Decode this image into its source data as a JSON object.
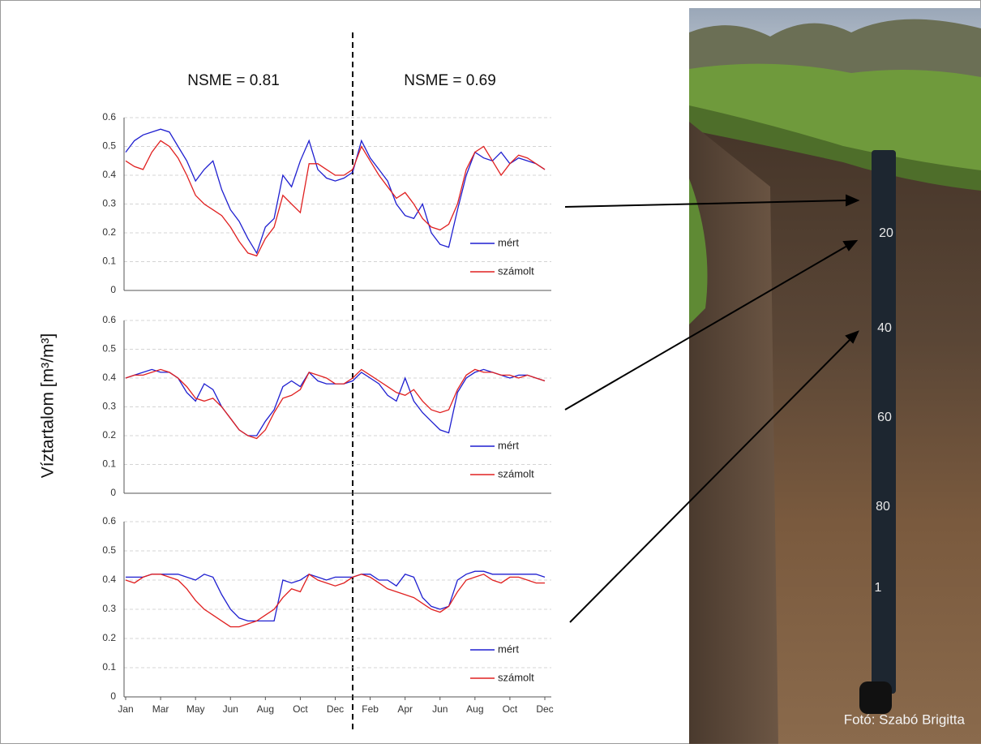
{
  "y_label": "Víztartalom [m³/m³]",
  "annotations": [
    "NSME = 0.81",
    "NSME = 0.69"
  ],
  "photo_credit": "Fotó: Szabó Brigitta",
  "tape_labels": [
    "20",
    "40",
    "60",
    "80",
    "1"
  ],
  "chart_data": [
    {
      "type": "line",
      "ylim": [
        0,
        0.6
      ],
      "yticks": [
        0,
        0.1,
        0.2,
        0.3,
        0.4,
        0.5,
        0.6
      ],
      "grid": true,
      "legend": "lower right",
      "series": [
        {
          "name": "mért",
          "color": "#1f1fd0",
          "values": [
            0.48,
            0.52,
            0.54,
            0.55,
            0.56,
            0.55,
            0.5,
            0.45,
            0.38,
            0.42,
            0.45,
            0.35,
            0.28,
            0.24,
            0.18,
            0.13,
            0.22,
            0.25,
            0.4,
            0.36,
            0.45,
            0.52,
            0.42,
            0.39,
            0.38,
            0.39,
            0.41,
            0.52,
            0.46,
            0.42,
            0.38,
            0.3,
            0.26,
            0.25,
            0.3,
            0.2,
            0.16,
            0.15,
            0.28,
            0.4,
            0.48,
            0.46,
            0.45,
            0.48,
            0.44,
            0.46,
            0.45,
            0.44,
            0.42
          ]
        },
        {
          "name": "számolt",
          "color": "#e02020",
          "values": [
            0.45,
            0.43,
            0.42,
            0.48,
            0.52,
            0.5,
            0.46,
            0.4,
            0.33,
            0.3,
            0.28,
            0.26,
            0.22,
            0.17,
            0.13,
            0.12,
            0.18,
            0.22,
            0.33,
            0.3,
            0.27,
            0.44,
            0.44,
            0.42,
            0.4,
            0.4,
            0.42,
            0.5,
            0.45,
            0.4,
            0.36,
            0.32,
            0.34,
            0.3,
            0.25,
            0.22,
            0.21,
            0.23,
            0.3,
            0.42,
            0.48,
            0.5,
            0.45,
            0.4,
            0.44,
            0.47,
            0.46,
            0.44,
            0.42
          ]
        }
      ]
    },
    {
      "type": "line",
      "ylim": [
        0,
        0.6
      ],
      "yticks": [
        0,
        0.1,
        0.2,
        0.3,
        0.4,
        0.5,
        0.6
      ],
      "grid": true,
      "legend": "lower right",
      "series": [
        {
          "name": "mért",
          "color": "#1f1fd0",
          "values": [
            0.4,
            0.41,
            0.42,
            0.43,
            0.42,
            0.42,
            0.4,
            0.35,
            0.32,
            0.38,
            0.36,
            0.3,
            0.26,
            0.22,
            0.2,
            0.2,
            0.25,
            0.29,
            0.37,
            0.39,
            0.37,
            0.42,
            0.39,
            0.38,
            0.38,
            0.38,
            0.39,
            0.42,
            0.4,
            0.38,
            0.34,
            0.32,
            0.4,
            0.32,
            0.28,
            0.25,
            0.22,
            0.21,
            0.35,
            0.4,
            0.42,
            0.43,
            0.42,
            0.41,
            0.4,
            0.41,
            0.41,
            0.4,
            0.39
          ]
        },
        {
          "name": "számolt",
          "color": "#e02020",
          "values": [
            0.4,
            0.41,
            0.41,
            0.42,
            0.43,
            0.42,
            0.4,
            0.37,
            0.33,
            0.32,
            0.33,
            0.3,
            0.26,
            0.22,
            0.2,
            0.19,
            0.22,
            0.28,
            0.33,
            0.34,
            0.36,
            0.42,
            0.41,
            0.4,
            0.38,
            0.38,
            0.4,
            0.43,
            0.41,
            0.39,
            0.37,
            0.35,
            0.34,
            0.36,
            0.32,
            0.29,
            0.28,
            0.29,
            0.36,
            0.41,
            0.43,
            0.42,
            0.42,
            0.41,
            0.41,
            0.4,
            0.41,
            0.4,
            0.39
          ]
        }
      ]
    },
    {
      "type": "line",
      "ylim": [
        0,
        0.6
      ],
      "yticks": [
        0,
        0.1,
        0.2,
        0.3,
        0.4,
        0.5,
        0.6
      ],
      "grid": true,
      "legend": "lower right",
      "categories": [
        "Jan",
        null,
        null,
        null,
        "Mar",
        null,
        null,
        null,
        "May",
        null,
        null,
        null,
        "Jun",
        null,
        null,
        null,
        "Aug",
        null,
        null,
        null,
        "Oct",
        null,
        null,
        null,
        "Dec",
        null,
        null,
        null,
        "Feb",
        null,
        null,
        null,
        "Apr",
        null,
        null,
        null,
        "Jun",
        null,
        null,
        null,
        "Aug",
        null,
        null,
        null,
        "Oct",
        null,
        null,
        null,
        "Dec"
      ],
      "series": [
        {
          "name": "mért",
          "color": "#1f1fd0",
          "values": [
            0.41,
            0.41,
            0.41,
            0.42,
            0.42,
            0.42,
            0.42,
            0.41,
            0.4,
            0.42,
            0.41,
            0.35,
            0.3,
            0.27,
            0.26,
            0.26,
            0.26,
            0.26,
            0.4,
            0.39,
            0.4,
            0.42,
            0.41,
            0.4,
            0.41,
            0.41,
            0.41,
            0.42,
            0.42,
            0.4,
            0.4,
            0.38,
            0.42,
            0.41,
            0.34,
            0.31,
            0.3,
            0.31,
            0.4,
            0.42,
            0.43,
            0.43,
            0.42,
            0.42,
            0.42,
            0.42,
            0.42,
            0.42,
            0.41
          ]
        },
        {
          "name": "számolt",
          "color": "#e02020",
          "values": [
            0.4,
            0.39,
            0.41,
            0.42,
            0.42,
            0.41,
            0.4,
            0.37,
            0.33,
            0.3,
            0.28,
            0.26,
            0.24,
            0.24,
            0.25,
            0.26,
            0.28,
            0.3,
            0.34,
            0.37,
            0.36,
            0.42,
            0.4,
            0.39,
            0.38,
            0.39,
            0.41,
            0.42,
            0.41,
            0.39,
            0.37,
            0.36,
            0.35,
            0.34,
            0.32,
            0.3,
            0.29,
            0.31,
            0.36,
            0.4,
            0.41,
            0.42,
            0.4,
            0.39,
            0.41,
            0.41,
            0.4,
            0.39,
            0.39
          ]
        }
      ]
    }
  ]
}
